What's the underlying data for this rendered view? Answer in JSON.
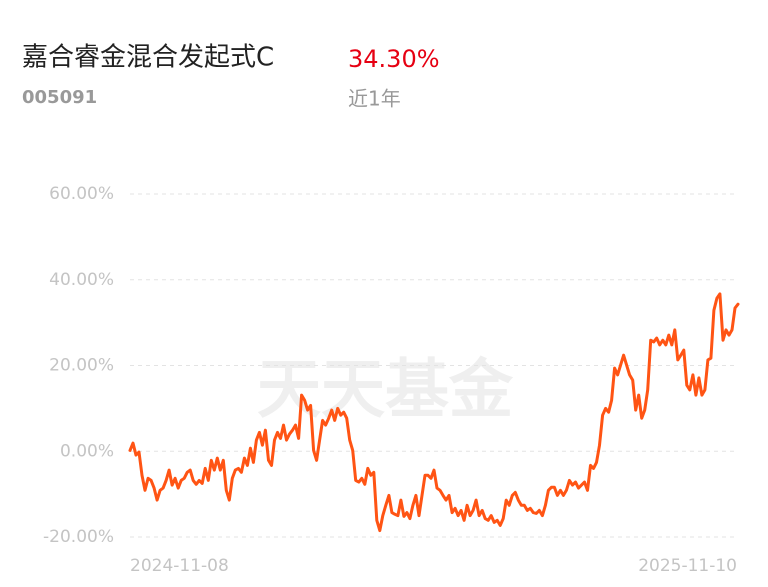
{
  "chart_data": {
    "type": "line",
    "title": "嘉合睿金混合发起式C",
    "code": "005091",
    "return": {
      "value": 34.3,
      "label": "34.30%"
    },
    "return_color": "#e60012",
    "period": "近1年",
    "watermark": "天天基金",
    "categories": [
      "2024-11-08",
      null,
      null,
      null,
      null,
      null,
      null,
      null,
      null,
      null,
      null,
      null,
      null,
      null,
      null,
      null,
      null,
      null,
      null,
      null,
      null,
      null,
      null,
      null,
      null,
      null,
      null,
      null,
      null,
      null,
      null,
      null,
      null,
      null,
      null,
      null,
      null,
      null,
      null,
      null,
      null,
      null,
      null,
      null,
      null,
      null,
      null,
      null,
      null,
      null,
      null,
      null,
      null,
      null,
      null,
      null,
      null,
      null,
      null,
      null,
      null,
      null,
      null,
      null,
      null,
      null,
      null,
      null,
      null,
      null,
      null,
      null,
      null,
      null,
      null,
      null,
      null,
      null,
      null,
      null,
      null,
      null,
      null,
      null,
      null,
      null,
      null,
      null,
      null,
      null,
      null,
      null,
      null,
      null,
      null,
      null,
      null,
      null,
      null,
      null,
      null,
      null,
      null,
      null,
      null,
      null,
      null,
      null,
      null,
      null,
      null,
      null,
      null,
      null,
      null,
      null,
      null,
      null,
      null,
      null,
      null,
      null,
      null,
      null,
      null,
      null,
      null,
      null,
      null,
      null,
      null,
      null,
      null,
      null,
      null,
      null,
      null,
      null,
      null,
      null,
      null,
      null,
      null,
      null,
      null,
      null,
      null,
      null,
      null,
      null,
      null,
      null,
      null,
      null,
      null,
      null,
      null,
      null,
      null,
      null,
      null,
      null,
      null,
      null,
      null,
      null,
      null,
      null,
      null,
      null,
      null,
      null,
      null,
      null,
      null,
      null,
      null,
      null,
      null,
      null,
      null,
      null,
      null,
      null,
      null,
      null,
      null,
      null,
      null,
      null,
      null,
      null,
      null,
      null,
      null,
      null,
      null,
      null,
      null,
      null,
      null,
      null,
      "2025-11-10"
    ],
    "series": [
      {
        "color": "#ff5414",
        "values": [
          0.2,
          1.9,
          -0.9,
          -0.2,
          -5.6,
          -9.1,
          -6.3,
          -6.8,
          -8.6,
          -11.4,
          -9.1,
          -8.6,
          -6.8,
          -4.4,
          -7.9,
          -6.3,
          -8.6,
          -6.8,
          -6.3,
          -4.9,
          -4.4,
          -6.8,
          -7.7,
          -6.8,
          -7.5,
          -4.0,
          -6.8,
          -2.1,
          -4.4,
          -1.6,
          -4.4,
          -2.1,
          -9.1,
          -11.4,
          -6.3,
          -4.4,
          -4.0,
          -4.9,
          -1.6,
          -3.3,
          0.7,
          -2.6,
          2.6,
          4.4,
          1.4,
          4.9,
          -2.1,
          -3.3,
          2.6,
          4.4,
          3.0,
          6.1,
          2.6,
          4.0,
          4.9,
          6.1,
          3.0,
          13.1,
          11.9,
          9.6,
          10.7,
          0.2,
          -2.1,
          2.6,
          7.2,
          6.1,
          7.7,
          9.6,
          7.2,
          10.0,
          8.4,
          9.1,
          7.7,
          2.6,
          0.2,
          -6.8,
          -7.2,
          -6.3,
          -7.7,
          -4.0,
          -5.6,
          -4.9,
          -16.1,
          -18.5,
          -15.0,
          -12.6,
          -10.3,
          -14.3,
          -14.7,
          -15.0,
          -11.4,
          -15.2,
          -14.3,
          -15.7,
          -12.6,
          -10.3,
          -15.0,
          -10.3,
          -5.6,
          -5.6,
          -6.3,
          -4.4,
          -8.6,
          -9.1,
          -10.3,
          -11.4,
          -10.3,
          -14.3,
          -13.3,
          -15.0,
          -13.8,
          -16.1,
          -12.6,
          -15.0,
          -13.8,
          -11.4,
          -15.0,
          -13.8,
          -15.7,
          -16.1,
          -15.0,
          -16.6,
          -16.1,
          -17.3,
          -15.7,
          -11.4,
          -12.6,
          -10.3,
          -9.6,
          -11.4,
          -12.6,
          -12.6,
          -13.8,
          -13.3,
          -14.3,
          -14.5,
          -13.8,
          -15.0,
          -12.6,
          -9.1,
          -8.4,
          -8.4,
          -10.3,
          -9.1,
          -10.3,
          -9.1,
          -6.8,
          -7.9,
          -7.2,
          -8.6,
          -7.9,
          -7.2,
          -9.1,
          -3.3,
          -4.0,
          -2.6,
          1.4,
          8.4,
          10.0,
          9.1,
          11.9,
          19.4,
          17.8,
          20.1,
          22.4,
          20.1,
          17.8,
          16.6,
          9.6,
          13.1,
          7.7,
          9.6,
          14.3,
          25.9,
          25.5,
          26.4,
          24.8,
          25.9,
          24.8,
          27.1,
          24.8,
          28.3,
          21.3,
          22.4,
          23.6,
          15.4,
          14.3,
          17.8,
          13.1,
          17.1,
          13.1,
          14.3,
          21.3,
          21.7,
          32.9,
          35.7,
          36.7,
          25.9,
          28.3,
          27.1,
          28.3,
          33.4,
          34.3
        ]
      }
    ],
    "ylim": [
      -20,
      60
    ],
    "yticks": [
      {
        "value": -20,
        "label": "-20.00%"
      },
      {
        "value": 0,
        "label": "0.00%"
      },
      {
        "value": 20,
        "label": "20.00%"
      },
      {
        "value": 40,
        "label": "40.00%"
      },
      {
        "value": 60,
        "label": "60.00%"
      }
    ],
    "grid": true
  }
}
